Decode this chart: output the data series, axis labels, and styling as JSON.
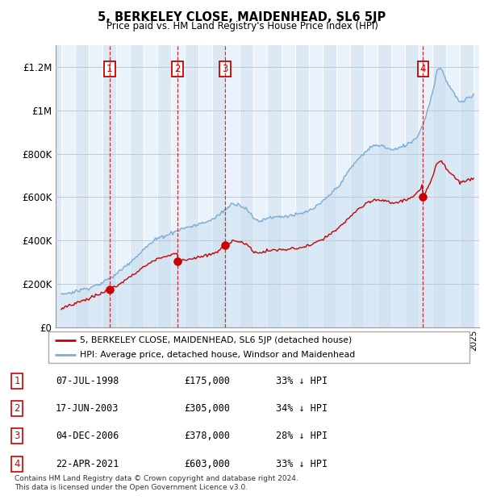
{
  "title": "5, BERKELEY CLOSE, MAIDENHEAD, SL6 5JP",
  "subtitle": "Price paid vs. HM Land Registry's House Price Index (HPI)",
  "sale_dates_num": [
    1998.52,
    2003.46,
    2006.92,
    2021.31
  ],
  "sale_prices": [
    175000,
    305000,
    378000,
    603000
  ],
  "sale_labels": [
    "1",
    "2",
    "3",
    "4"
  ],
  "hpi_line_color": "#7aadd4",
  "hpi_fill_color": "#c8dff0",
  "sale_line_color": "#cc0000",
  "sale_dot_color": "#cc0000",
  "legend_entries": [
    "5, BERKELEY CLOSE, MAIDENHEAD, SL6 5JP (detached house)",
    "HPI: Average price, detached house, Windsor and Maidenhead"
  ],
  "table_rows": [
    [
      "1",
      "07-JUL-1998",
      "£175,000",
      "33% ↓ HPI"
    ],
    [
      "2",
      "17-JUN-2003",
      "£305,000",
      "34% ↓ HPI"
    ],
    [
      "3",
      "04-DEC-2006",
      "£378,000",
      "28% ↓ HPI"
    ],
    [
      "4",
      "22-APR-2021",
      "£603,000",
      "33% ↓ HPI"
    ]
  ],
  "footnote": "Contains HM Land Registry data © Crown copyright and database right 2024.\nThis data is licensed under the Open Government Licence v3.0.",
  "ylim": [
    0,
    1300000
  ],
  "yticks": [
    0,
    200000,
    400000,
    600000,
    800000,
    1000000,
    1200000
  ],
  "ytick_labels": [
    "£0",
    "£200K",
    "£400K",
    "£600K",
    "£800K",
    "£1M",
    "£1.2M"
  ],
  "xlim_start": 1994.6,
  "xlim_end": 2025.4,
  "bg_color": "#dce8f4",
  "plot_bg_color": "#dce8f4",
  "alt_band_color": "#eaf3fb"
}
